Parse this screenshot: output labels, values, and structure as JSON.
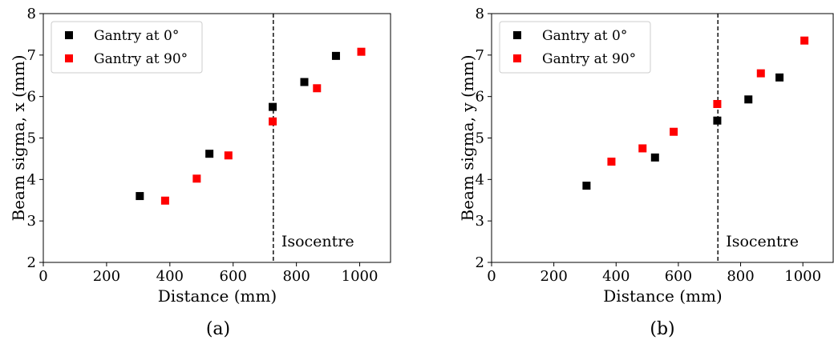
{
  "chart_data": [
    {
      "type": "scatter",
      "panel_label": "(a)",
      "xlabel": "Distance (mm)",
      "ylabel": "Beam sigma, x (mm)",
      "xlim": [
        0,
        1100
      ],
      "ylim": [
        2,
        8
      ],
      "xticks": [
        0,
        200,
        400,
        600,
        800,
        1000
      ],
      "yticks": [
        2,
        3,
        4,
        5,
        6,
        7,
        8
      ],
      "grid": false,
      "legend_position": "top-left",
      "vline": {
        "x": 727,
        "style": "dashed",
        "label": "Isocentre"
      },
      "series": [
        {
          "name": "Gantry at 0°",
          "color": "#000000",
          "marker": "square",
          "points": [
            [
              305,
              3.6
            ],
            [
              525,
              4.62
            ],
            [
              725,
              5.75
            ],
            [
              825,
              6.35
            ],
            [
              925,
              6.98
            ]
          ]
        },
        {
          "name": "Gantry at 90°",
          "color": "#ff0000",
          "marker": "square",
          "points": [
            [
              385,
              3.49
            ],
            [
              485,
              4.02
            ],
            [
              585,
              4.58
            ],
            [
              725,
              5.4
            ],
            [
              865,
              6.2
            ],
            [
              1005,
              7.08
            ]
          ]
        }
      ]
    },
    {
      "type": "scatter",
      "panel_label": "(b)",
      "xlabel": "Distance (mm)",
      "ylabel": "Beam sigma, y (mm)",
      "xlim": [
        0,
        1100
      ],
      "ylim": [
        2,
        8
      ],
      "xticks": [
        0,
        200,
        400,
        600,
        800,
        1000
      ],
      "yticks": [
        2,
        3,
        4,
        5,
        6,
        7,
        8
      ],
      "grid": false,
      "legend_position": "top-left",
      "vline": {
        "x": 727,
        "style": "dashed",
        "label": "Isocentre"
      },
      "series": [
        {
          "name": "Gantry at 0°",
          "color": "#000000",
          "marker": "square",
          "points": [
            [
              305,
              3.85
            ],
            [
              525,
              4.53
            ],
            [
              725,
              5.42
            ],
            [
              825,
              5.93
            ],
            [
              925,
              6.46
            ]
          ]
        },
        {
          "name": "Gantry at 90°",
          "color": "#ff0000",
          "marker": "square",
          "points": [
            [
              385,
              4.43
            ],
            [
              485,
              4.75
            ],
            [
              585,
              5.15
            ],
            [
              725,
              5.82
            ],
            [
              865,
              6.56
            ],
            [
              1005,
              7.35
            ]
          ]
        }
      ]
    }
  ]
}
